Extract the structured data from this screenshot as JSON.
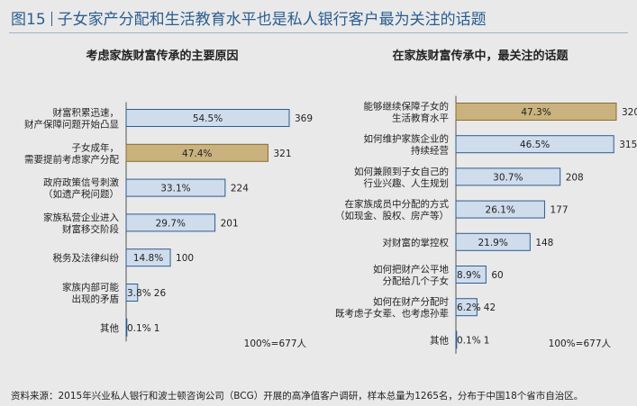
{
  "header": {
    "figure_label": "图15",
    "title": "子女家产分配和生活教育水平也是私人银行客户最为关注的话题"
  },
  "footer": {
    "source": "资料来源：2015年兴业私人银行和波士顿咨询公司（BCG）开展的高净值客户调研，样本总量为1265名，分布于中国18个省市自治区。"
  },
  "colors": {
    "bar_fill": "#cfdcec",
    "bar_stroke": "#2a5d8f",
    "highlight_fill": "#c9b27e",
    "highlight_stroke": "#8a6d2f",
    "text": "#222222",
    "title_blue": "#2a5d8f"
  },
  "chart_data": [
    {
      "type": "bar",
      "orientation": "horizontal",
      "title": "考虑家族财富传承的主要原因",
      "note": "100%=677人",
      "categories": [
        [
          "财富积累迅速，",
          "财产保障问题开始凸显"
        ],
        [
          "子女成年，",
          "需要提前考虑家产分配"
        ],
        [
          "政府政策信号刺激",
          "（如遗产税问题）"
        ],
        [
          "家族私营企业进入",
          "财富移交阶段"
        ],
        [
          "税务及法律纠纷"
        ],
        [
          "家族内部可能",
          "出现的矛盾"
        ],
        [
          "其他"
        ]
      ],
      "percent_labels": [
        "54.5%",
        "47.4%",
        "33.1%",
        "29.7%",
        "14.8%",
        "3.8%",
        "0.1%"
      ],
      "values": [
        369,
        321,
        224,
        201,
        100,
        26,
        1
      ],
      "highlight_index": 1
    },
    {
      "type": "bar",
      "orientation": "horizontal",
      "title": "在家族财富传承中，最关注的话题",
      "note": "100%=677人",
      "categories": [
        [
          "能够继续保障子女的",
          "生活教育水平"
        ],
        [
          "如何维护家族企业的",
          "持续经营"
        ],
        [
          "如何兼顾到子女自己的",
          "行业兴趣、人生规划"
        ],
        [
          "在家族成员中分配的方式",
          "（如现金、股权、房产等）"
        ],
        [
          "对财富的掌控权"
        ],
        [
          "如何把财产公平地",
          "分配给几个子女"
        ],
        [
          "如何在财产分配时",
          "既考虑子女辈、也考虑孙辈"
        ],
        [
          "其他"
        ]
      ],
      "percent_labels": [
        "47.3%",
        "46.5%",
        "30.7%",
        "26.1%",
        "21.9%",
        "8.9%",
        "6.2%",
        "0.1%"
      ],
      "values": [
        320,
        315,
        208,
        177,
        148,
        60,
        42,
        1
      ],
      "highlight_index": 0
    }
  ]
}
